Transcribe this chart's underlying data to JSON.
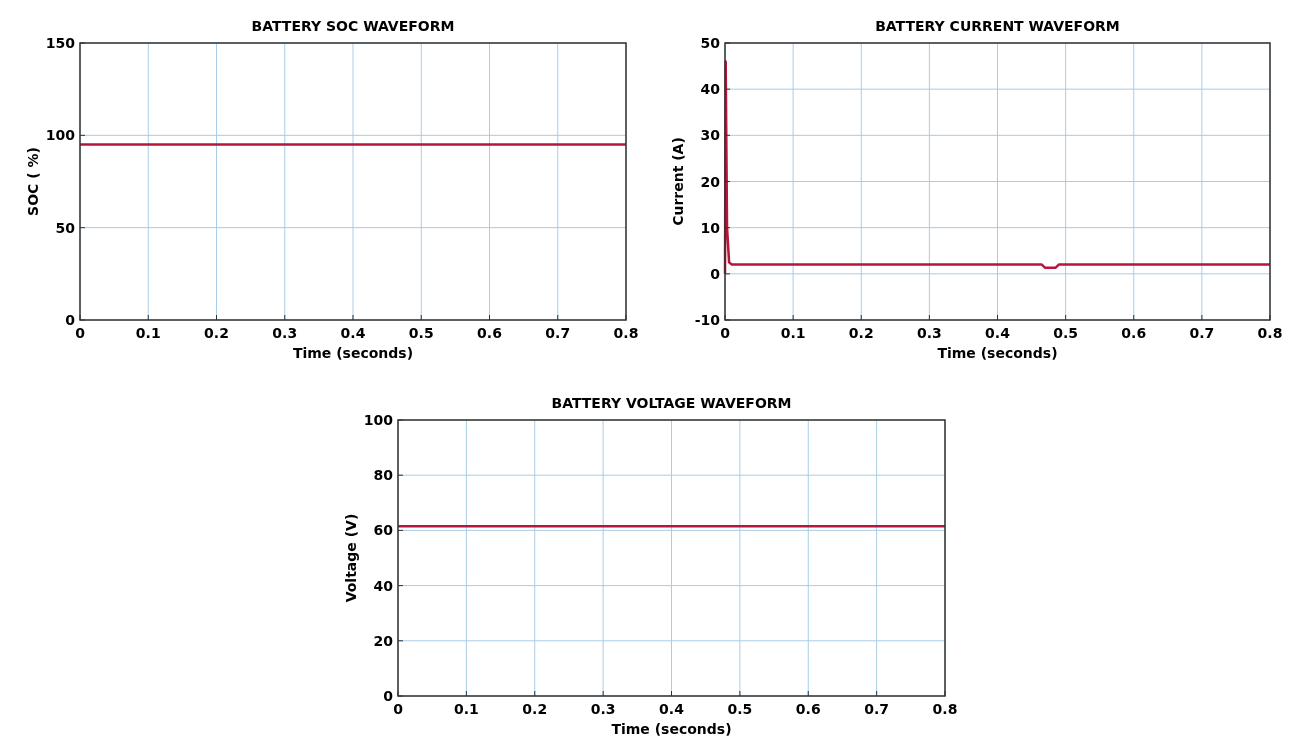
{
  "chart_data": [
    {
      "type": "line",
      "title": "BATTERY SOC WAVEFORM",
      "xlabel": "Time (seconds)",
      "ylabel": "SOC ( %)",
      "x": [
        0,
        0.8
      ],
      "series": [
        {
          "color": "#b5163a",
          "values": [
            95,
            95
          ]
        }
      ],
      "xlim": [
        0,
        0.8
      ],
      "ylim": [
        0,
        150
      ],
      "xticks": [
        0,
        0.1,
        0.2,
        0.3,
        0.4,
        0.5,
        0.6,
        0.7,
        0.8
      ],
      "yticks": [
        0,
        50,
        100,
        150
      ],
      "grid": true,
      "marker": "none",
      "line_style": "solid"
    },
    {
      "type": "line",
      "title": "BATTERY CURRENT WAVEFORM",
      "xlabel": "Time (seconds)",
      "ylabel": "Current (A)",
      "x": [
        0,
        0.001,
        0.003,
        0.006,
        0.01,
        0.1,
        0.2,
        0.3,
        0.4,
        0.465,
        0.47,
        0.485,
        0.49,
        0.6,
        0.7,
        0.8
      ],
      "series": [
        {
          "color": "#b5163a",
          "values": [
            0,
            46,
            10,
            2.5,
            2,
            2,
            2,
            2,
            2,
            2,
            1.3,
            1.3,
            2,
            2,
            2,
            2
          ]
        }
      ],
      "xlim": [
        0,
        0.8
      ],
      "ylim": [
        -10,
        50
      ],
      "xticks": [
        0,
        0.1,
        0.2,
        0.3,
        0.4,
        0.5,
        0.6,
        0.7,
        0.8
      ],
      "yticks": [
        -10,
        0,
        10,
        20,
        30,
        40,
        50
      ],
      "grid": true,
      "marker": "none",
      "line_style": "solid"
    },
    {
      "type": "line",
      "title": "BATTERY VOLTAGE WAVEFORM",
      "xlabel": "Time (seconds)",
      "ylabel": "Voltage (V)",
      "x": [
        0,
        0.8
      ],
      "series": [
        {
          "color": "#b5163a",
          "values": [
            61.5,
            61.5
          ]
        }
      ],
      "xlim": [
        0,
        0.8
      ],
      "ylim": [
        0,
        100
      ],
      "xticks": [
        0,
        0.1,
        0.2,
        0.3,
        0.4,
        0.5,
        0.6,
        0.7,
        0.8
      ],
      "yticks": [
        0,
        20,
        40,
        60,
        80,
        100
      ],
      "grid": true,
      "marker": "none",
      "line_style": "solid"
    }
  ]
}
